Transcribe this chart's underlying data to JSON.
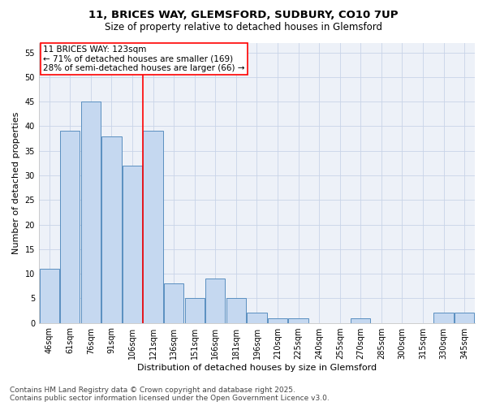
{
  "title_line1": "11, BRICES WAY, GLEMSFORD, SUDBURY, CO10 7UP",
  "title_line2": "Size of property relative to detached houses in Glemsford",
  "xlabel": "Distribution of detached houses by size in Glemsford",
  "ylabel": "Number of detached properties",
  "categories": [
    "46sqm",
    "61sqm",
    "76sqm",
    "91sqm",
    "106sqm",
    "121sqm",
    "136sqm",
    "151sqm",
    "166sqm",
    "181sqm",
    "196sqm",
    "210sqm",
    "225sqm",
    "240sqm",
    "255sqm",
    "270sqm",
    "285sqm",
    "300sqm",
    "315sqm",
    "330sqm",
    "345sqm"
  ],
  "values": [
    11,
    39,
    45,
    38,
    32,
    39,
    8,
    5,
    9,
    5,
    2,
    1,
    1,
    0,
    0,
    1,
    0,
    0,
    0,
    2,
    2
  ],
  "bar_color": "#c5d8f0",
  "bar_edge_color": "#5a8fc0",
  "bar_edge_width": 0.7,
  "grid_color": "#c8d4e8",
  "background_color": "#edf1f8",
  "vline_color": "red",
  "vline_x_index": 4.5,
  "annotation_title": "11 BRICES WAY: 123sqm",
  "annotation_line1": "← 71% of detached houses are smaller (169)",
  "annotation_line2": "28% of semi-detached houses are larger (66) →",
  "annotation_box_color": "white",
  "annotation_box_edge_color": "red",
  "ylim": [
    0,
    57
  ],
  "yticks": [
    0,
    5,
    10,
    15,
    20,
    25,
    30,
    35,
    40,
    45,
    50,
    55
  ],
  "footer_line1": "Contains HM Land Registry data © Crown copyright and database right 2025.",
  "footer_line2": "Contains public sector information licensed under the Open Government Licence v3.0.",
  "title_fontsize": 9.5,
  "subtitle_fontsize": 8.5,
  "axis_label_fontsize": 8,
  "tick_fontsize": 7,
  "annotation_fontsize": 7.5,
  "footer_fontsize": 6.5
}
